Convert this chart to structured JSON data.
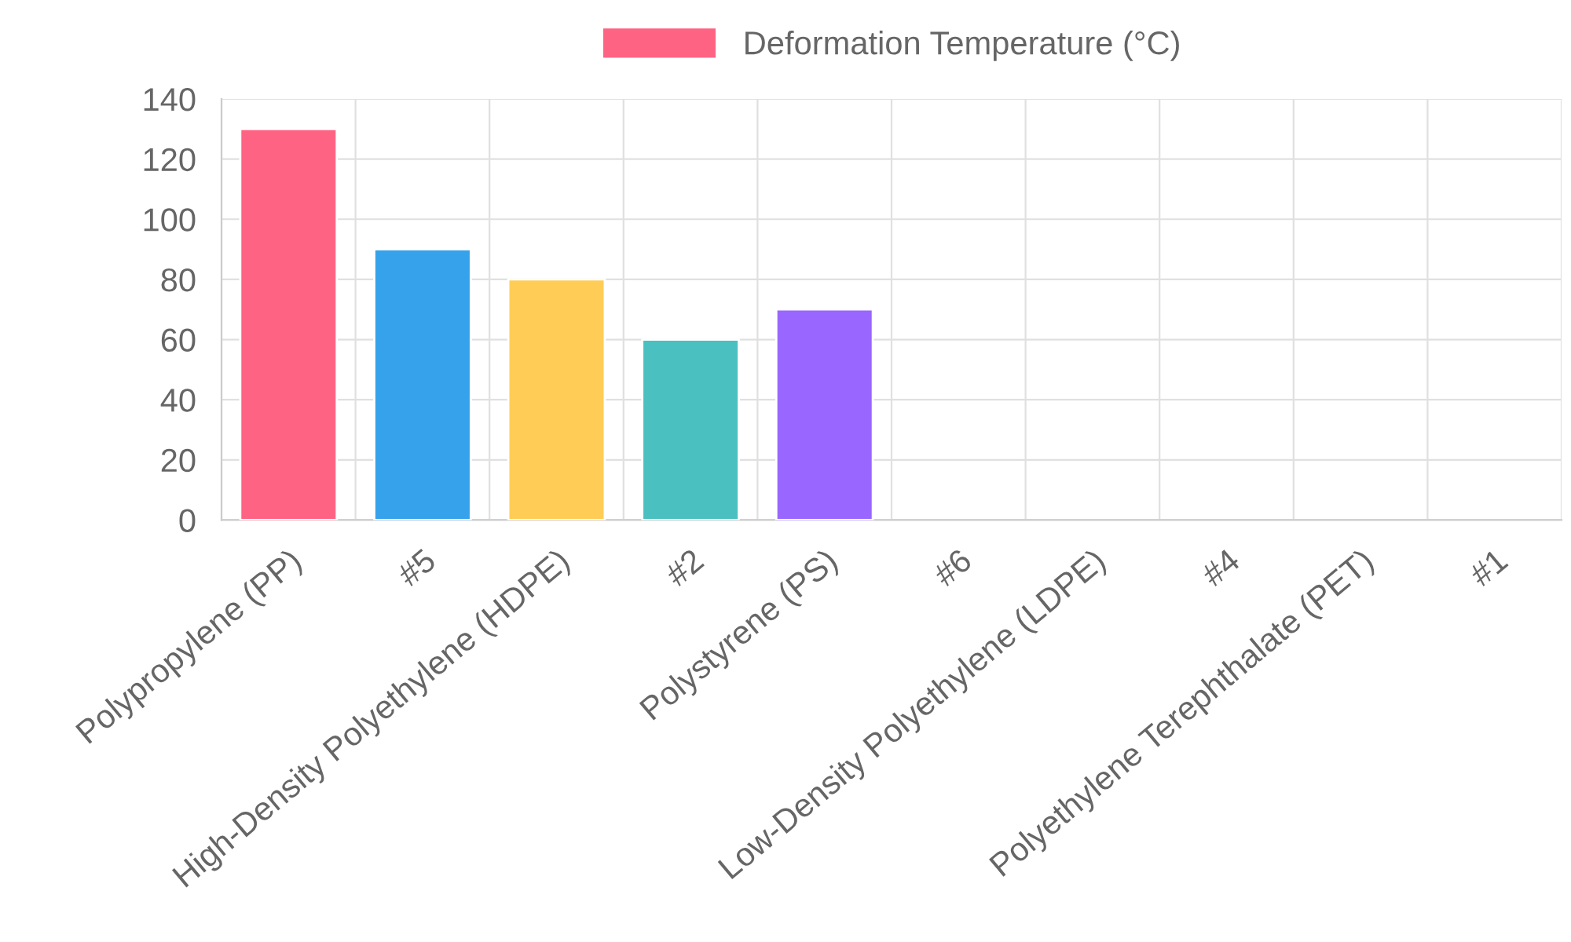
{
  "chart_data": {
    "type": "bar",
    "categories": [
      "Polypropylene (PP)",
      "#5",
      "High-Density Polyethylene (HDPE)",
      "#2",
      "Polystyrene (PS)",
      "#6",
      "Low-Density Polyethylene (LDPE)",
      "#4",
      "Polyethylene Terephthalate (PET)",
      "#1"
    ],
    "series": [
      {
        "name": "Deformation Temperature (°C)",
        "color": "#ff6384",
        "colors": [
          "#ff6384",
          "#36a2eb",
          "#ffcd56",
          "#4bc0c0",
          "#9966ff",
          null,
          null,
          null,
          null,
          null
        ],
        "values": [
          130,
          90,
          80,
          60,
          70,
          null,
          null,
          null,
          null,
          null
        ]
      }
    ],
    "ylim": [
      0,
      140
    ],
    "yticks": [
      0,
      20,
      40,
      60,
      80,
      100,
      120,
      140
    ],
    "grid": true,
    "legend": "top"
  }
}
